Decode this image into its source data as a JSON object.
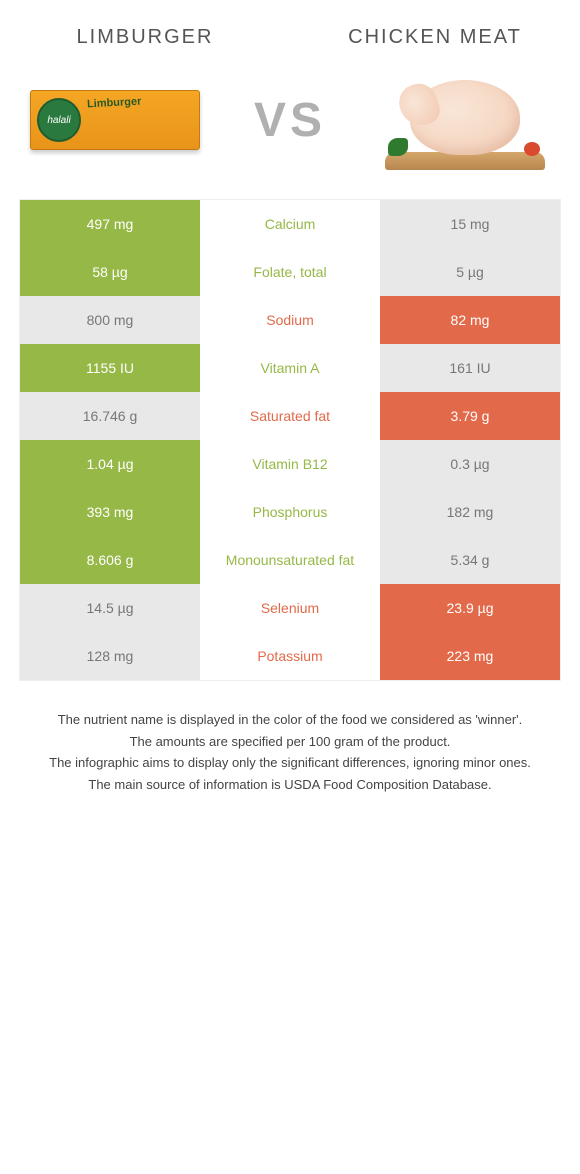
{
  "colors": {
    "green": "#96b846",
    "orange": "#e26a4a",
    "grey": "#e8e8e8",
    "grey_text": "#777777",
    "white": "#ffffff"
  },
  "header": {
    "left_title": "Limburger",
    "right_title": "Chicken Meat",
    "vs": "VS"
  },
  "rows": [
    {
      "nutrient": "Calcium",
      "left": "497 mg",
      "right": "15 mg",
      "winner": "left"
    },
    {
      "nutrient": "Folate, total",
      "left": "58 µg",
      "right": "5 µg",
      "winner": "left"
    },
    {
      "nutrient": "Sodium",
      "left": "800 mg",
      "right": "82 mg",
      "winner": "right"
    },
    {
      "nutrient": "Vitamin A",
      "left": "1155 IU",
      "right": "161 IU",
      "winner": "left"
    },
    {
      "nutrient": "Saturated fat",
      "left": "16.746 g",
      "right": "3.79 g",
      "winner": "right"
    },
    {
      "nutrient": "Vitamin B12",
      "left": "1.04 µg",
      "right": "0.3 µg",
      "winner": "left"
    },
    {
      "nutrient": "Phosphorus",
      "left": "393 mg",
      "right": "182 mg",
      "winner": "left"
    },
    {
      "nutrient": "Monounsaturated fat",
      "left": "8.606 g",
      "right": "5.34 g",
      "winner": "left"
    },
    {
      "nutrient": "Selenium",
      "left": "14.5 µg",
      "right": "23.9 µg",
      "winner": "right"
    },
    {
      "nutrient": "Potassium",
      "left": "128 mg",
      "right": "223 mg",
      "winner": "right"
    }
  ],
  "footnotes": [
    "The nutrient name is displayed in the color of the food we considered as 'winner'.",
    "The amounts are specified per 100 gram of the product.",
    "The infographic aims to display only the significant differences, ignoring minor ones.",
    "The main source of information is USDA Food Composition Database."
  ]
}
